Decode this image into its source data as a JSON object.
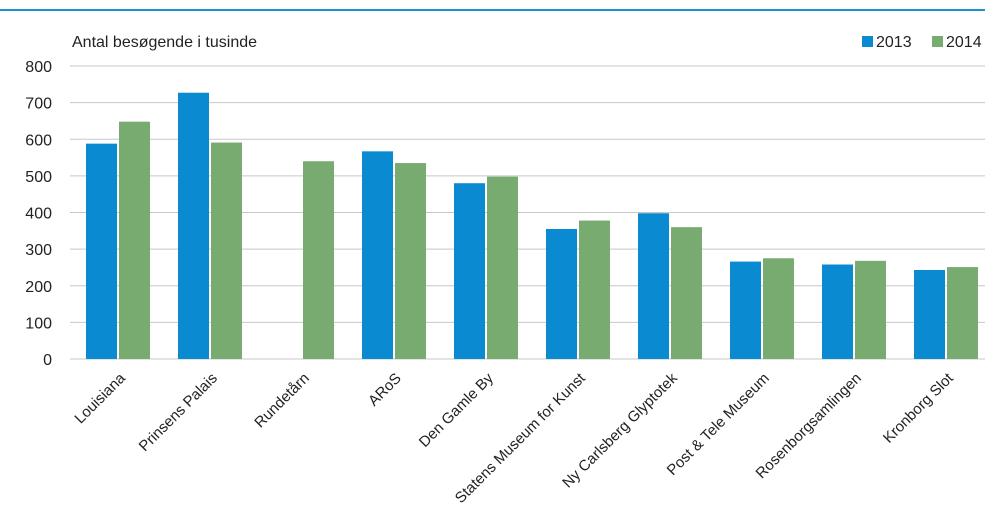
{
  "colors": {
    "2013": "#0a8bd1",
    "2014": "#78ab6f",
    "grid": "#c8c8c8",
    "rule": "#1e8fd0"
  },
  "chart_data": {
    "type": "bar",
    "ylabel": "Antal besøgende i tusinde",
    "categories": [
      "Louisiana",
      "Prinsens Palais",
      "Rundetårn",
      "ARoS",
      "Den Gamle By",
      "Statens Museum for Kunst",
      "Ny Carlsberg Glyptotek",
      "Post & Tele Museum",
      "Rosenborgsamlingen",
      "Kronborg Slot"
    ],
    "series": [
      {
        "name": "2013",
        "values": [
          588,
          727,
          null,
          567,
          480,
          355,
          398,
          266,
          258,
          243
        ]
      },
      {
        "name": "2014",
        "values": [
          648,
          591,
          540,
          535,
          498,
          378,
          360,
          275,
          268,
          251
        ]
      }
    ],
    "yticks": [
      "0",
      "100",
      "200",
      "300",
      "400",
      "500",
      "600",
      "700",
      "800"
    ],
    "ylim": [
      0,
      800
    ],
    "grid": true,
    "legend": "top-right"
  }
}
